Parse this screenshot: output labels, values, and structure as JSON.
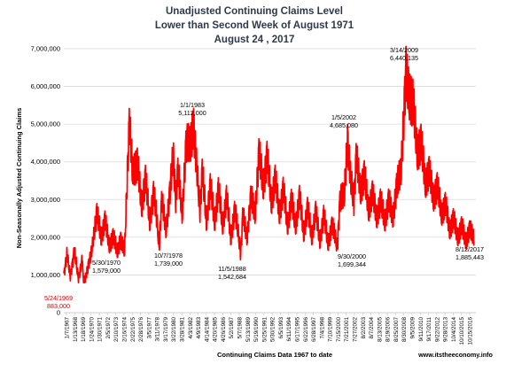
{
  "chart_data": {
    "type": "line",
    "title": [
      "Unadjusted Continuing Claims Level",
      "Lower than Second Week of August 1971",
      "August 24 , 2017"
    ],
    "ylabel": "Non-Seasonally Adjusted Continuing Claims",
    "xlabel": "Continuing Claims Data 1967 to date",
    "credit": "www.itstheeconomy.info",
    "ylim": [
      0,
      7000000
    ],
    "xlim": [
      1967.0,
      2017.85
    ],
    "grid": "horizontal",
    "legend": "none",
    "line_color": "#ff0000",
    "ytick_values": [
      0,
      1000000,
      2000000,
      3000000,
      4000000,
      5000000,
      6000000,
      7000000
    ],
    "ytick_labels": [
      "0",
      "1,000,000",
      "2,000,000",
      "3,000,000",
      "4,000,000",
      "5,000,000",
      "6,000,000",
      "7,000,000"
    ],
    "xtick_labels": [
      "1/7/1967",
      "1/13/1968",
      "1/18/1969",
      "1/24/1970",
      "1/30/1971",
      "2/5/1972",
      "2/10/1973",
      "2/16/1974",
      "2/22/1975",
      "2/28/1976",
      "3/5/1977",
      "3/11/1978",
      "3/17/1979",
      "3/22/1980",
      "3/28/1981",
      "4/3/1982",
      "4/9/1983",
      "4/14/1984",
      "4/20/1985",
      "4/26/1986",
      "5/2/1987",
      "5/7/1988",
      "5/13/1989",
      "5/19/1990",
      "5/25/1991",
      "5/30/1992",
      "6/5/1993",
      "6/11/1994",
      "6/17/1995",
      "6/22/1996",
      "6/28/1997",
      "7/4/1998",
      "7/10/1999",
      "7/15/2000",
      "7/21/2001",
      "7/27/2002",
      "8/2/2003",
      "8/7/2004",
      "8/13/2005",
      "8/19/2006",
      "8/25/2007",
      "8/30/2008",
      "9/5/2009",
      "9/11/2010",
      "9/17/2011",
      "9/22/2012",
      "9/28/2013",
      "10/4/2014",
      "10/10/2015",
      "10/15/2016"
    ],
    "envelope_points": [
      [
        1967.0,
        1000000
      ],
      [
        1967.4,
        1550000
      ],
      [
        1967.8,
        950000
      ],
      [
        1968.3,
        1650000
      ],
      [
        1968.8,
        900000
      ],
      [
        1969.3,
        1450000
      ],
      [
        1969.39,
        883000
      ],
      [
        1969.6,
        840000
      ],
      [
        1970.1,
        1350000
      ],
      [
        1970.41,
        1579000
      ],
      [
        1970.6,
        1850000
      ],
      [
        1971.1,
        2750000
      ],
      [
        1971.6,
        1900000
      ],
      [
        1972.1,
        2550000
      ],
      [
        1972.6,
        1700000
      ],
      [
        1973.1,
        2100000
      ],
      [
        1973.6,
        1550000
      ],
      [
        1974.0,
        2000000
      ],
      [
        1974.5,
        1600000
      ],
      [
        1975.1,
        5200000
      ],
      [
        1975.5,
        3600000
      ],
      [
        1976.1,
        4100000
      ],
      [
        1976.6,
        2700000
      ],
      [
        1977.1,
        3700000
      ],
      [
        1977.6,
        2300000
      ],
      [
        1978.1,
        3300000
      ],
      [
        1978.77,
        1739000
      ],
      [
        1979.1,
        3100000
      ],
      [
        1979.6,
        2100000
      ],
      [
        1980.1,
        3300000
      ],
      [
        1980.5,
        4100000
      ],
      [
        1980.8,
        3000000
      ],
      [
        1981.1,
        3900000
      ],
      [
        1981.6,
        2500000
      ],
      [
        1982.1,
        4600000
      ],
      [
        1982.6,
        4300000
      ],
      [
        1983.0,
        5112000
      ],
      [
        1983.4,
        3800000
      ],
      [
        1983.8,
        2700000
      ],
      [
        1984.1,
        3900000
      ],
      [
        1984.6,
        2300000
      ],
      [
        1985.1,
        3500000
      ],
      [
        1985.6,
        2300000
      ],
      [
        1986.1,
        3400000
      ],
      [
        1986.6,
        2200000
      ],
      [
        1987.1,
        3200000
      ],
      [
        1987.6,
        1900000
      ],
      [
        1988.1,
        2800000
      ],
      [
        1988.84,
        1542684
      ],
      [
        1989.1,
        2700000
      ],
      [
        1989.6,
        1900000
      ],
      [
        1990.1,
        3200000
      ],
      [
        1990.6,
        2500000
      ],
      [
        1991.1,
        4400000
      ],
      [
        1991.6,
        3200000
      ],
      [
        1992.1,
        4300000
      ],
      [
        1992.6,
        2800000
      ],
      [
        1993.1,
        3700000
      ],
      [
        1993.6,
        2500000
      ],
      [
        1994.1,
        3400000
      ],
      [
        1994.6,
        2200000
      ],
      [
        1995.1,
        3100000
      ],
      [
        1995.6,
        2200000
      ],
      [
        1996.1,
        3200000
      ],
      [
        1996.6,
        2000000
      ],
      [
        1997.1,
        2900000
      ],
      [
        1997.6,
        1900000
      ],
      [
        1998.1,
        2800000
      ],
      [
        1998.6,
        1800000
      ],
      [
        1999.1,
        2700000
      ],
      [
        1999.6,
        1750000
      ],
      [
        2000.1,
        2400000
      ],
      [
        2000.75,
        1699344
      ],
      [
        2001.1,
        3100000
      ],
      [
        2001.6,
        3000000
      ],
      [
        2002.01,
        4685080
      ],
      [
        2002.4,
        3500000
      ],
      [
        2002.8,
        2900000
      ],
      [
        2003.1,
        4300000
      ],
      [
        2003.6,
        3100000
      ],
      [
        2004.1,
        3800000
      ],
      [
        2004.6,
        2600000
      ],
      [
        2005.1,
        3300000
      ],
      [
        2005.6,
        2400000
      ],
      [
        2006.1,
        3100000
      ],
      [
        2006.6,
        2300000
      ],
      [
        2007.1,
        3100000
      ],
      [
        2007.6,
        2400000
      ],
      [
        2008.1,
        3500000
      ],
      [
        2008.6,
        3600000
      ],
      [
        2009.2,
        6440135
      ],
      [
        2009.6,
        5600000
      ],
      [
        2010.1,
        5800000
      ],
      [
        2010.6,
        4100000
      ],
      [
        2011.1,
        4700000
      ],
      [
        2011.6,
        3300000
      ],
      [
        2012.1,
        3900000
      ],
      [
        2012.6,
        2900000
      ],
      [
        2013.1,
        3500000
      ],
      [
        2013.6,
        2500000
      ],
      [
        2014.1,
        3000000
      ],
      [
        2014.6,
        2100000
      ],
      [
        2015.1,
        2600000
      ],
      [
        2015.6,
        1900000
      ],
      [
        2016.1,
        2400000
      ],
      [
        2016.6,
        1800000
      ],
      [
        2017.1,
        2300000
      ],
      [
        2017.61,
        1885443
      ]
    ],
    "annotations": [
      {
        "date": "5/24/1969",
        "value": "883,000",
        "x": 1969.39,
        "y": 883000,
        "color": "#e00000"
      },
      {
        "date": "5/30/1970",
        "value": "1,579,000",
        "x": 1970.41,
        "y": 1579000,
        "color": "#000000"
      },
      {
        "date": "10/7/1978",
        "value": "1,739,000",
        "x": 1978.77,
        "y": 1739000,
        "color": "#000000"
      },
      {
        "date": "1/1/1983",
        "value": "5,112,000",
        "x": 1983.0,
        "y": 5112000,
        "color": "#000000"
      },
      {
        "date": "11/5/1988",
        "value": "1,542,684",
        "x": 1988.84,
        "y": 1542684,
        "color": "#000000"
      },
      {
        "date": "9/30/2000",
        "value": "1,699,344",
        "x": 2000.75,
        "y": 1699344,
        "color": "#000000"
      },
      {
        "date": "1/5/2002",
        "value": "4,685,080",
        "x": 2002.01,
        "y": 4685080,
        "color": "#000000"
      },
      {
        "date": "3/14/2009",
        "value": "6,440,135",
        "x": 2009.2,
        "y": 6440135,
        "color": "#000000"
      },
      {
        "date": "8/12/2017",
        "value": "1,885,443",
        "x": 2017.61,
        "y": 1885443,
        "color": "#000000"
      }
    ]
  }
}
